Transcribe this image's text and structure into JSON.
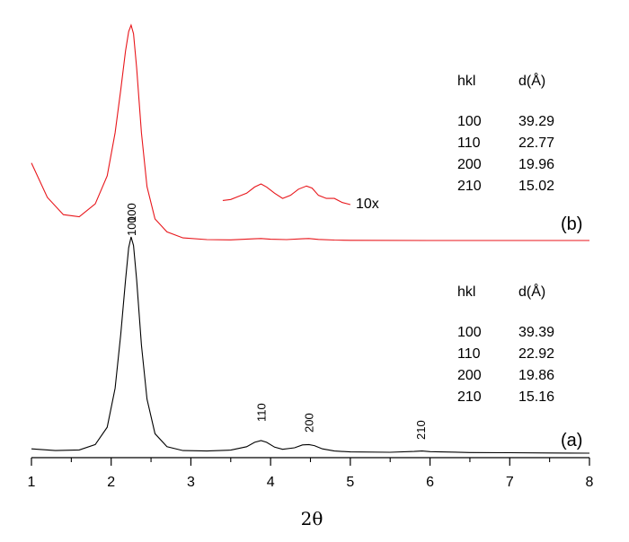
{
  "chart_data": {
    "type": "line",
    "xlabel": "2θ",
    "ylabel": "",
    "xlim": [
      1,
      8
    ],
    "xticks": [
      "1",
      "2",
      "3",
      "4",
      "5",
      "6",
      "7",
      "8"
    ],
    "grid": false,
    "series": [
      {
        "name": "(a)",
        "color": "#000000",
        "x": [
          1.0,
          1.3,
          1.6,
          1.8,
          1.95,
          2.05,
          2.12,
          2.18,
          2.22,
          2.25,
          2.28,
          2.32,
          2.38,
          2.45,
          2.55,
          2.7,
          2.9,
          3.2,
          3.5,
          3.7,
          3.8,
          3.88,
          3.95,
          4.05,
          4.15,
          4.3,
          4.4,
          4.48,
          4.55,
          4.65,
          4.8,
          5.0,
          5.5,
          5.8,
          5.9,
          6.0,
          6.5,
          7.0,
          7.5,
          8.0
        ],
        "y": [
          0.02,
          0.012,
          0.015,
          0.04,
          0.12,
          0.3,
          0.55,
          0.8,
          0.95,
          1.0,
          0.96,
          0.8,
          0.5,
          0.25,
          0.09,
          0.03,
          0.012,
          0.01,
          0.014,
          0.03,
          0.05,
          0.058,
          0.05,
          0.028,
          0.018,
          0.025,
          0.038,
          0.04,
          0.035,
          0.02,
          0.01,
          0.006,
          0.004,
          0.008,
          0.01,
          0.007,
          0.003,
          0.002,
          0.001,
          0.0
        ]
      },
      {
        "name": "(b)",
        "color": "#e8161b",
        "x": [
          1.0,
          1.2,
          1.4,
          1.6,
          1.8,
          1.95,
          2.05,
          2.12,
          2.18,
          2.22,
          2.25,
          2.28,
          2.32,
          2.38,
          2.45,
          2.55,
          2.7,
          2.9,
          3.2,
          3.5,
          3.8,
          3.88,
          4.0,
          4.2,
          4.4,
          4.48,
          4.6,
          4.8,
          5.0,
          6.0,
          7.0,
          8.0
        ],
        "y": [
          0.36,
          0.2,
          0.12,
          0.11,
          0.17,
          0.3,
          0.5,
          0.7,
          0.88,
          0.97,
          1.0,
          0.96,
          0.8,
          0.5,
          0.25,
          0.1,
          0.04,
          0.012,
          0.004,
          0.003,
          0.008,
          0.009,
          0.006,
          0.004,
          0.008,
          0.009,
          0.005,
          0.002,
          0.001,
          0.0,
          0.0,
          0.0
        ]
      }
    ],
    "inset": {
      "label": "10x",
      "color": "#e8161b",
      "x": [
        3.4,
        3.5,
        3.6,
        3.7,
        3.8,
        3.88,
        3.95,
        4.05,
        4.15,
        4.25,
        4.35,
        4.45,
        4.52,
        4.6,
        4.7,
        4.8,
        4.9,
        5.0
      ],
      "y": [
        0.2,
        0.25,
        0.4,
        0.55,
        0.85,
        1.0,
        0.85,
        0.55,
        0.3,
        0.45,
        0.75,
        0.9,
        0.8,
        0.45,
        0.3,
        0.3,
        0.1,
        0.0
      ]
    },
    "peak_labels": {
      "a": [
        {
          "text": "100",
          "x": 2.25
        },
        {
          "text": "110",
          "x": 3.88
        },
        {
          "text": "200",
          "x": 4.48
        },
        {
          "text": "210",
          "x": 5.88
        }
      ],
      "b": [
        {
          "text": "100",
          "x": 2.25
        }
      ]
    },
    "tables": {
      "b": {
        "headers": [
          "hkl",
          "d(Å)"
        ],
        "rows": [
          [
            "100",
            "39.29"
          ],
          [
            "110",
            "22.77"
          ],
          [
            "200",
            "19.96"
          ],
          [
            "210",
            "15.02"
          ]
        ]
      },
      "a": {
        "headers": [
          "hkl",
          "d(Å)"
        ],
        "rows": [
          [
            "100",
            "39.39"
          ],
          [
            "110",
            "22.92"
          ],
          [
            "200",
            "19.86"
          ],
          [
            "210",
            "15.16"
          ]
        ]
      }
    },
    "series_labels": {
      "a": "(a)",
      "b": "(b)"
    }
  }
}
